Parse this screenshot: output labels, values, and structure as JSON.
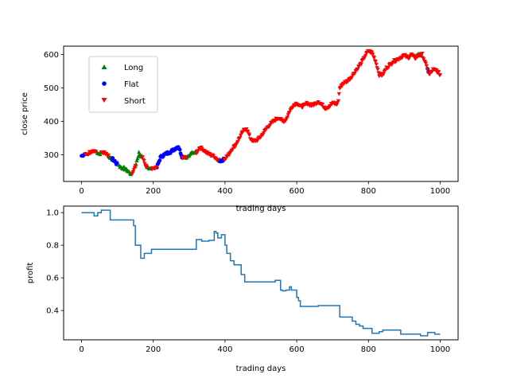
{
  "colors": {
    "long": "#008000",
    "flat": "#0000ff",
    "short": "#ff0000",
    "profit_line": "#1f77b4",
    "axes": "#000000",
    "background": "#ffffff"
  },
  "chart_data": [
    {
      "type": "scatter",
      "xlabel": "trading days",
      "ylabel": "close price",
      "xlim": [
        -50,
        1050
      ],
      "ylim": [
        220,
        625
      ],
      "xticks": [
        0,
        200,
        400,
        600,
        800,
        1000
      ],
      "yticks": [
        300,
        400,
        500,
        600
      ],
      "grid": false,
      "legend": {
        "placement": "upper-left"
      },
      "price_path": {
        "x": [
          0,
          10,
          20,
          30,
          40,
          50,
          60,
          70,
          80,
          90,
          100,
          110,
          120,
          130,
          140,
          150,
          160,
          170,
          180,
          190,
          200,
          210,
          220,
          230,
          240,
          250,
          260,
          270,
          280,
          290,
          300,
          310,
          320,
          330,
          340,
          350,
          360,
          370,
          380,
          390,
          400,
          410,
          420,
          430,
          440,
          450,
          460,
          470,
          480,
          490,
          500,
          510,
          520,
          530,
          540,
          550,
          560,
          570,
          580,
          590,
          600,
          610,
          620,
          630,
          640,
          650,
          660,
          670,
          680,
          690,
          700,
          710,
          715,
          720,
          730,
          740,
          750,
          760,
          770,
          780,
          790,
          800,
          810,
          820,
          830,
          840,
          850,
          860,
          870,
          880,
          890,
          900,
          910,
          920,
          930,
          940,
          950,
          960,
          970,
          980,
          990,
          1000
        ],
        "y": [
          298,
          300,
          305,
          313,
          310,
          302,
          308,
          300,
          290,
          285,
          270,
          262,
          258,
          250,
          240,
          265,
          305,
          290,
          265,
          258,
          258,
          262,
          292,
          300,
          305,
          310,
          318,
          325,
          295,
          290,
          300,
          305,
          307,
          322,
          315,
          305,
          300,
          295,
          285,
          282,
          290,
          300,
          318,
          330,
          350,
          370,
          380,
          350,
          340,
          345,
          355,
          370,
          385,
          395,
          405,
          412,
          400,
          405,
          430,
          448,
          455,
          445,
          447,
          455,
          448,
          452,
          460,
          450,
          440,
          445,
          455,
          452,
          455,
          500,
          515,
          520,
          530,
          545,
          560,
          575,
          595,
          612,
          605,
          580,
          540,
          540,
          560,
          570,
          580,
          585,
          592,
          598,
          590,
          600,
          590,
          598,
          600,
          570,
          540,
          555,
          552,
          540
        ]
      },
      "series": [
        {
          "name": "Long",
          "marker": "triangle-up",
          "ranges": [
            [
              40,
              55
            ],
            [
              75,
              90
            ],
            [
              105,
              140
            ],
            [
              150,
              168
            ],
            [
              182,
              195
            ],
            [
              290,
              320
            ],
            [
              380,
              392
            ],
            [
              935,
              950
            ]
          ]
        },
        {
          "name": "Flat",
          "marker": "circle",
          "ranges": [
            [
              0,
              10
            ],
            [
              85,
              100
            ],
            [
              210,
              282
            ],
            [
              384,
              398
            ],
            [
              965,
              968
            ]
          ]
        },
        {
          "name": "Short",
          "marker": "triangle-down",
          "ranges": [
            [
              10,
              40
            ],
            [
              55,
              75
            ],
            [
              140,
              150
            ],
            [
              168,
              182
            ],
            [
              195,
              210
            ],
            [
              282,
              290
            ],
            [
              320,
              380
            ],
            [
              398,
              965
            ],
            [
              968,
              1000
            ]
          ]
        }
      ]
    },
    {
      "type": "line",
      "xlabel": "trading days",
      "ylabel": "profit",
      "xlim": [
        -50,
        1050
      ],
      "ylim": [
        0.22,
        1.04
      ],
      "xticks": [
        0,
        200,
        400,
        600,
        800,
        1000
      ],
      "yticks": [
        0.4,
        0.6,
        0.8,
        1.0
      ],
      "grid": false,
      "series": [
        {
          "x": [
            0,
            35,
            35,
            45,
            45,
            55,
            55,
            80,
            80,
            145,
            145,
            150,
            150,
            165,
            165,
            175,
            175,
            195,
            195,
            320,
            320,
            335,
            335,
            355,
            355,
            370,
            370,
            375,
            375,
            380,
            380,
            390,
            390,
            400,
            400,
            405,
            405,
            415,
            415,
            425,
            425,
            445,
            445,
            455,
            455,
            540,
            540,
            555,
            555,
            560,
            560,
            570,
            570,
            580,
            580,
            585,
            585,
            600,
            600,
            605,
            605,
            610,
            610,
            660,
            660,
            720,
            720,
            755,
            755,
            765,
            765,
            775,
            775,
            785,
            785,
            810,
            810,
            830,
            830,
            840,
            840,
            890,
            890,
            945,
            945,
            965,
            965,
            985,
            985,
            1000
          ],
          "y": [
            1.0,
            1.0,
            0.98,
            0.98,
            1.0,
            1.0,
            1.015,
            1.015,
            0.955,
            0.955,
            0.92,
            0.92,
            0.8,
            0.8,
            0.72,
            0.72,
            0.75,
            0.75,
            0.775,
            0.775,
            0.835,
            0.835,
            0.825,
            0.825,
            0.83,
            0.83,
            0.885,
            0.885,
            0.875,
            0.875,
            0.845,
            0.845,
            0.865,
            0.865,
            0.8,
            0.8,
            0.75,
            0.75,
            0.705,
            0.705,
            0.68,
            0.68,
            0.62,
            0.62,
            0.575,
            0.575,
            0.585,
            0.585,
            0.525,
            0.525,
            0.52,
            0.52,
            0.525,
            0.525,
            0.545,
            0.545,
            0.525,
            0.525,
            0.48,
            0.48,
            0.46,
            0.46,
            0.425,
            0.425,
            0.43,
            0.43,
            0.36,
            0.36,
            0.335,
            0.335,
            0.315,
            0.315,
            0.305,
            0.305,
            0.29,
            0.29,
            0.26,
            0.26,
            0.27,
            0.27,
            0.28,
            0.28,
            0.255,
            0.255,
            0.245,
            0.245,
            0.265,
            0.265,
            0.255,
            0.255
          ]
        }
      ]
    }
  ]
}
